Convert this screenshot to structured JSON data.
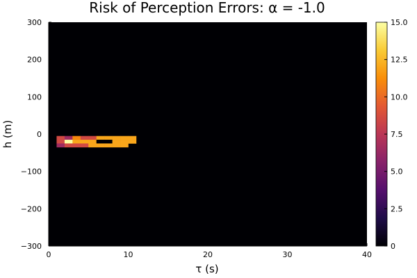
{
  "chart_data": {
    "type": "heatmap",
    "title": "Risk of Perception Errors: α = -1.0",
    "xlabel": "τ (s)",
    "ylabel": "h (m)",
    "xlim": [
      0,
      40
    ],
    "ylim": [
      -300,
      300
    ],
    "x_ticks": [
      {
        "value": 0,
        "label": "0"
      },
      {
        "value": 10,
        "label": "10"
      },
      {
        "value": 20,
        "label": "20"
      },
      {
        "value": 30,
        "label": "30"
      },
      {
        "value": 40,
        "label": "40"
      }
    ],
    "y_ticks": [
      {
        "value": 300,
        "label": "300"
      },
      {
        "value": 200,
        "label": "200"
      },
      {
        "value": 100,
        "label": "100"
      },
      {
        "value": 0,
        "label": "0"
      },
      {
        "value": -100,
        "label": "−100"
      },
      {
        "value": -200,
        "label": "−200"
      },
      {
        "value": -300,
        "label": "−300"
      }
    ],
    "background_value": 0,
    "cell_width": 1,
    "cell_height": 10,
    "cells": [
      {
        "tau": 1.5,
        "h": -10,
        "value": 8.5
      },
      {
        "tau": 2.5,
        "h": -10,
        "value": 6.5
      },
      {
        "tau": 3.5,
        "h": -10,
        "value": 11
      },
      {
        "tau": 4.5,
        "h": -10,
        "value": 8.5
      },
      {
        "tau": 5.5,
        "h": -10,
        "value": 8.5
      },
      {
        "tau": 6.5,
        "h": -10,
        "value": 12
      },
      {
        "tau": 7.5,
        "h": -10,
        "value": 12
      },
      {
        "tau": 8.5,
        "h": -10,
        "value": 12
      },
      {
        "tau": 9.5,
        "h": -10,
        "value": 12
      },
      {
        "tau": 10.5,
        "h": -10,
        "value": 12
      },
      {
        "tau": 1.5,
        "h": -20,
        "value": 8.5
      },
      {
        "tau": 2.5,
        "h": -20,
        "value": 15
      },
      {
        "tau": 3.5,
        "h": -20,
        "value": 12
      },
      {
        "tau": 4.5,
        "h": -20,
        "value": 12
      },
      {
        "tau": 5.5,
        "h": -20,
        "value": 12
      },
      {
        "tau": 6.5,
        "h": -20,
        "value": 0
      },
      {
        "tau": 7.5,
        "h": -20,
        "value": 0
      },
      {
        "tau": 8.5,
        "h": -20,
        "value": 12
      },
      {
        "tau": 9.5,
        "h": -20,
        "value": 12
      },
      {
        "tau": 10.5,
        "h": -20,
        "value": 12
      },
      {
        "tau": 1.5,
        "h": -30,
        "value": 6.5
      },
      {
        "tau": 2.5,
        "h": -30,
        "value": 8.5
      },
      {
        "tau": 3.5,
        "h": -30,
        "value": 8.5
      },
      {
        "tau": 4.5,
        "h": -30,
        "value": 8.5
      },
      {
        "tau": 5.5,
        "h": -30,
        "value": 12
      },
      {
        "tau": 6.5,
        "h": -30,
        "value": 12
      },
      {
        "tau": 7.5,
        "h": -30,
        "value": 12
      },
      {
        "tau": 8.5,
        "h": -30,
        "value": 12
      },
      {
        "tau": 9.5,
        "h": -30,
        "value": 12
      }
    ],
    "colorbar": {
      "range": [
        0,
        15
      ],
      "ticks": [
        {
          "value": 0,
          "label": "0"
        },
        {
          "value": 2.5,
          "label": "2.5"
        },
        {
          "value": 5,
          "label": "5.0"
        },
        {
          "value": 7.5,
          "label": "7.5"
        },
        {
          "value": 10,
          "label": "10.0"
        },
        {
          "value": 12.5,
          "label": "12.5"
        },
        {
          "value": 15,
          "label": "15.0"
        }
      ],
      "colormap": "inferno",
      "stops": [
        "#000004",
        "#1f0c48",
        "#550f6d",
        "#88226a",
        "#ba3655",
        "#e35933",
        "#f98e09",
        "#f9cb35",
        "#fcffa4"
      ]
    },
    "grid": false
  }
}
